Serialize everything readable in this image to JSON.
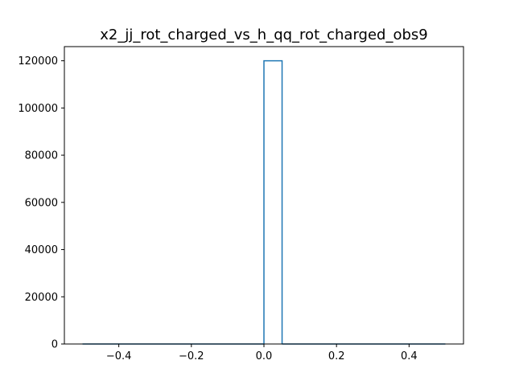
{
  "chart_data": {
    "type": "bar",
    "title": "x2_jj_rot_charged_vs_h_qq_rot_charged_obs9",
    "xlabel": "",
    "ylabel": "",
    "histtype": "step",
    "bins": [
      {
        "x0": -0.5,
        "x1": 0.0,
        "count": 0
      },
      {
        "x0": 0.0,
        "x1": 0.05,
        "count": 120000
      },
      {
        "x0": 0.05,
        "x1": 0.5,
        "count": 0
      }
    ],
    "xlim": [
      -0.55,
      0.55
    ],
    "ylim": [
      0,
      126000
    ],
    "xticks": [
      -0.4,
      -0.2,
      0.0,
      0.2,
      0.4
    ],
    "xtick_labels": [
      "−0.4",
      "−0.2",
      "0.0",
      "0.2",
      "0.4"
    ],
    "yticks": [
      0,
      20000,
      40000,
      60000,
      80000,
      100000,
      120000
    ],
    "ytick_labels": [
      "0",
      "20000",
      "40000",
      "60000",
      "80000",
      "100000",
      "120000"
    ],
    "grid": false,
    "line_color": "#1f77b4"
  }
}
